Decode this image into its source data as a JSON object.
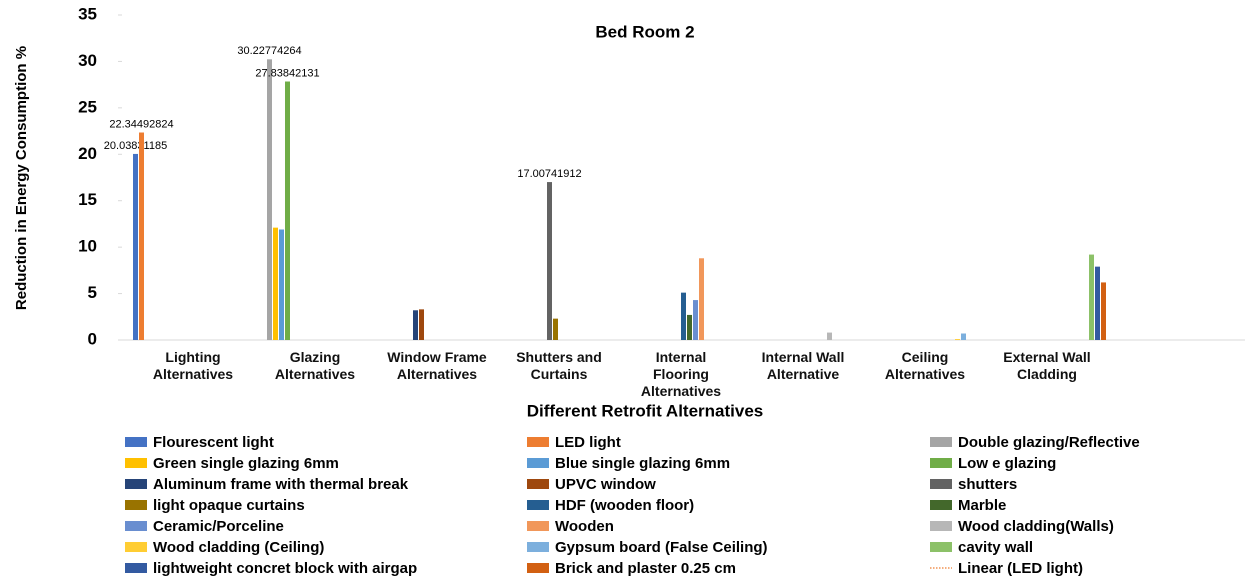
{
  "chart_data": {
    "type": "bar",
    "title": "Bed Room 2",
    "x_label": "Different Retrofit Alternatives",
    "y_label": "Reduction in Energy Consumption %",
    "categories": [
      "Lighting Alternatives",
      "Glazing Alternatives",
      "Window Frame Alternatives",
      "Shutters and Curtains",
      "Internal Flooring Alternatives",
      "Internal Wall Alternative",
      "Ceiling Alternatives",
      "External Wall Cladding"
    ],
    "ylim": [
      0,
      35
    ],
    "yticks": [
      0,
      5,
      10,
      15,
      20,
      25,
      30,
      35
    ],
    "series": [
      {
        "name": "Flourescent light",
        "color": "#4472c4",
        "show_labels": true,
        "values": [
          20.03831185,
          null,
          null,
          null,
          null,
          null,
          null,
          null
        ]
      },
      {
        "name": "LED light",
        "color": "#ed7d31",
        "show_labels": true,
        "values": [
          22.34492824,
          null,
          null,
          null,
          null,
          null,
          null,
          null
        ]
      },
      {
        "name": "Double glazing/Reflective",
        "color": "#a5a5a5",
        "show_labels": true,
        "values": [
          null,
          30.22774264,
          null,
          null,
          null,
          null,
          null,
          null
        ]
      },
      {
        "name": "Green single glazing 6mm",
        "color": "#ffc000",
        "values": [
          null,
          12.1,
          null,
          null,
          null,
          null,
          null,
          null
        ]
      },
      {
        "name": "Blue single glazing 6mm",
        "color": "#5b9bd5",
        "values": [
          null,
          11.9,
          null,
          null,
          null,
          null,
          null,
          null
        ]
      },
      {
        "name": "Low e glazing",
        "color": "#70ad47",
        "show_labels": true,
        "values": [
          null,
          27.83842131,
          null,
          null,
          null,
          null,
          null,
          null
        ]
      },
      {
        "name": "Aluminum frame with thermal break",
        "color": "#264478",
        "values": [
          null,
          null,
          3.2,
          null,
          null,
          null,
          null,
          null
        ]
      },
      {
        "name": "UPVC window",
        "color": "#9e480e",
        "values": [
          null,
          null,
          3.3,
          null,
          null,
          null,
          null,
          null
        ]
      },
      {
        "name": "shutters",
        "color": "#636363",
        "show_labels": true,
        "values": [
          null,
          null,
          null,
          17.00741912,
          null,
          null,
          null,
          null
        ]
      },
      {
        "name": "light opaque curtains",
        "color": "#997300",
        "values": [
          null,
          null,
          null,
          2.3,
          null,
          null,
          null,
          null
        ]
      },
      {
        "name": "HDF (wooden floor)",
        "color": "#255e91",
        "values": [
          null,
          null,
          null,
          null,
          5.1,
          null,
          null,
          null
        ]
      },
      {
        "name": "Marble",
        "color": "#43682b",
        "values": [
          null,
          null,
          null,
          null,
          2.7,
          null,
          null,
          null
        ]
      },
      {
        "name": "Ceramic/Porceline",
        "color": "#698ed0",
        "values": [
          null,
          null,
          null,
          null,
          4.3,
          null,
          null,
          null
        ]
      },
      {
        "name": "Wooden",
        "color": "#f1975a",
        "values": [
          null,
          null,
          null,
          null,
          8.8,
          null,
          null,
          null
        ]
      },
      {
        "name": "Wood cladding(Walls)",
        "color": "#b7b7b7",
        "values": [
          null,
          null,
          null,
          null,
          null,
          0.8,
          null,
          null
        ]
      },
      {
        "name": "Wood cladding (Ceiling)",
        "color": "#ffcd33",
        "values": [
          null,
          null,
          null,
          null,
          null,
          null,
          0.1,
          null
        ]
      },
      {
        "name": "Gypsum board (False Ceiling)",
        "color": "#7cafdd",
        "values": [
          null,
          null,
          null,
          null,
          null,
          null,
          0.7,
          null
        ]
      },
      {
        "name": "cavity wall",
        "color": "#8cc168",
        "values": [
          null,
          null,
          null,
          null,
          null,
          null,
          null,
          9.2
        ]
      },
      {
        "name": "lightweight concret block with airgap",
        "color": "#335aa1",
        "values": [
          null,
          null,
          null,
          null,
          null,
          null,
          null,
          7.9
        ]
      },
      {
        "name": "Brick and plaster 0.25 cm",
        "color": "#d26012",
        "values": [
          null,
          null,
          null,
          null,
          null,
          null,
          null,
          6.2
        ]
      }
    ],
    "trendline": {
      "name": "Linear (LED light)",
      "color": "#ed7d31"
    }
  }
}
